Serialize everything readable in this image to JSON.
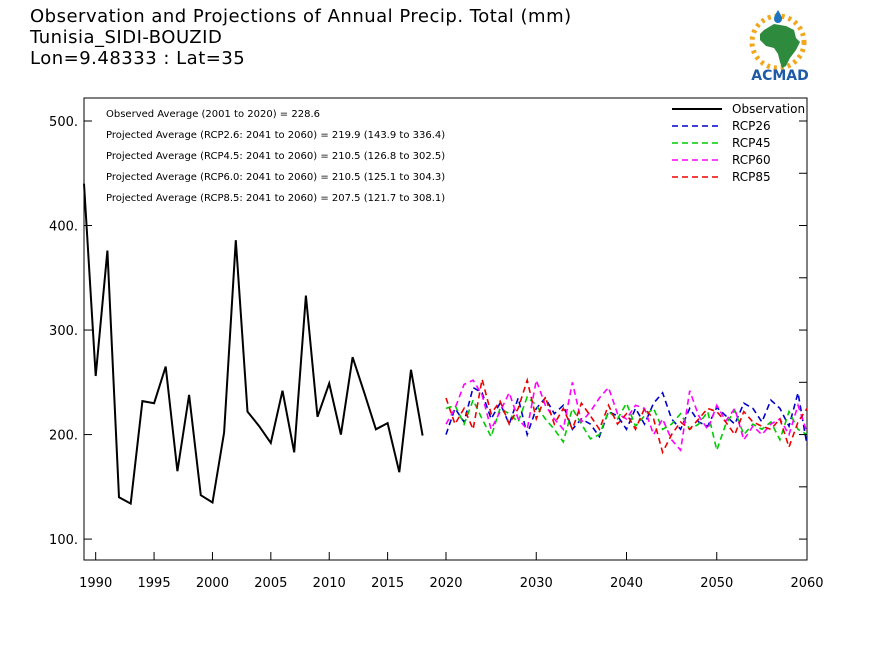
{
  "header": {
    "line1": "Observation and Projections of Annual Precip. Total (mm)",
    "line2": "Tunisia_SIDI-BOUZID",
    "line3": "Lon=9.48333 : Lat=35"
  },
  "logo": {
    "text": "ACMAD",
    "icon": "africa-map-sun-raindrop-icon"
  },
  "colors": {
    "observation": "#000000",
    "RCP26": "#0000cc",
    "RCP45": "#00cc00",
    "RCP60": "#ff00ff",
    "RCP85": "#ee0000"
  },
  "chart_data": {
    "type": "line",
    "title": "Observation and Projections of Annual Precip. Total (mm)",
    "xlim": [
      1989,
      2060
    ],
    "ylim": [
      80,
      522
    ],
    "grid": false,
    "legend_placement": "top-right",
    "stats": [
      "Observed Average (2001 to 2020) = 228.6",
      "Projected Average (RCP2.6: 2041 to 2060) = 219.9 (143.9 to 336.4)",
      "Projected Average (RCP4.5: 2041 to 2060) = 210.5 (126.8 to 302.5)",
      "Projected Average (RCP6.0: 2041 to 2060) = 210.5 (125.1 to 304.3)",
      "Projected Average (RCP8.5: 2041 to 2060) = 207.5 (121.7 to 308.1)"
    ],
    "y_ticks": [
      {
        "value": 100,
        "label": "100."
      },
      {
        "value": 200,
        "label": "200."
      },
      {
        "value": 300,
        "label": "300."
      },
      {
        "value": 400,
        "label": "400."
      },
      {
        "value": 500,
        "label": "500."
      }
    ],
    "x_ticks": [
      {
        "value": 1990,
        "label": "1990"
      },
      {
        "value": 1995,
        "label": "1995"
      },
      {
        "value": 2000,
        "label": "2000"
      },
      {
        "value": 2005,
        "label": "2005"
      },
      {
        "value": 2010,
        "label": "2010"
      },
      {
        "value": 2015,
        "label": "2015"
      },
      {
        "value": 2020,
        "label": "2020"
      },
      {
        "value": 2030,
        "label": "2030"
      },
      {
        "value": 2040,
        "label": "2040"
      },
      {
        "value": 2050,
        "label": "2050"
      },
      {
        "value": 2060,
        "label": "2060"
      }
    ],
    "series": [
      {
        "name": "Observation",
        "style": "solid",
        "color": "#000000",
        "x": [
          1989,
          1990,
          1991,
          1992,
          1993,
          1994,
          1995,
          1996,
          1997,
          1998,
          1999,
          2000,
          2001,
          2002,
          2003,
          2004,
          2005,
          2006,
          2007,
          2008,
          2009,
          2010,
          2011,
          2012,
          2013,
          2014,
          2015,
          2016,
          2017,
          2018,
          2019,
          2020
        ],
        "y": [
          440,
          256,
          376,
          140,
          134,
          232,
          230,
          265,
          165,
          238,
          142,
          135,
          202,
          386,
          222,
          208,
          192,
          242,
          183,
          333,
          217,
          249,
          200,
          274,
          240,
          205,
          211,
          164,
          262,
          199,
          null,
          null
        ]
      },
      {
        "name": "RCP26",
        "style": "dashed",
        "color": "#0000cc",
        "x": [
          2020,
          2021,
          2022,
          2023,
          2024,
          2025,
          2026,
          2027,
          2028,
          2029,
          2030,
          2031,
          2032,
          2033,
          2034,
          2035,
          2036,
          2037,
          2038,
          2039,
          2040,
          2041,
          2042,
          2043,
          2044,
          2045,
          2046,
          2047,
          2048,
          2049,
          2050,
          2051,
          2052,
          2053,
          2054,
          2055,
          2056,
          2057,
          2058,
          2059,
          2060
        ],
        "y": [
          200,
          225,
          212,
          245,
          240,
          215,
          230,
          210,
          235,
          200,
          225,
          235,
          220,
          228,
          205,
          215,
          210,
          198,
          222,
          218,
          205,
          225,
          210,
          230,
          240,
          215,
          205,
          225,
          212,
          208,
          226,
          218,
          210,
          230,
          225,
          212,
          233,
          225,
          208,
          240,
          190
        ]
      },
      {
        "name": "RCP45",
        "style": "dashed",
        "color": "#00cc00",
        "x": [
          2020,
          2021,
          2022,
          2023,
          2024,
          2025,
          2026,
          2027,
          2028,
          2029,
          2030,
          2031,
          2032,
          2033,
          2034,
          2035,
          2036,
          2037,
          2038,
          2039,
          2040,
          2041,
          2042,
          2043,
          2044,
          2045,
          2046,
          2047,
          2048,
          2049,
          2050,
          2051,
          2052,
          2053,
          2054,
          2055,
          2056,
          2057,
          2058,
          2059,
          2060
        ],
        "y": [
          225,
          228,
          210,
          233,
          215,
          198,
          225,
          220,
          212,
          236,
          228,
          215,
          205,
          193,
          225,
          210,
          196,
          200,
          222,
          215,
          230,
          208,
          218,
          225,
          205,
          210,
          220,
          205,
          210,
          222,
          185,
          210,
          223,
          200,
          210,
          205,
          212,
          195,
          222,
          205,
          200
        ]
      },
      {
        "name": "RCP60",
        "style": "dashed",
        "color": "#ff00ff",
        "x": [
          2020,
          2021,
          2022,
          2023,
          2024,
          2025,
          2026,
          2027,
          2028,
          2029,
          2030,
          2031,
          2032,
          2033,
          2034,
          2035,
          2036,
          2037,
          2038,
          2039,
          2040,
          2041,
          2042,
          2043,
          2044,
          2045,
          2046,
          2047,
          2048,
          2049,
          2050,
          2051,
          2052,
          2053,
          2054,
          2055,
          2056,
          2057,
          2058,
          2059,
          2060
        ],
        "y": [
          210,
          225,
          248,
          252,
          238,
          205,
          222,
          240,
          215,
          205,
          252,
          228,
          215,
          205,
          250,
          212,
          222,
          235,
          245,
          220,
          215,
          228,
          225,
          200,
          215,
          195,
          185,
          242,
          218,
          205,
          228,
          213,
          225,
          195,
          208,
          200,
          210,
          215,
          200,
          228,
          202
        ]
      },
      {
        "name": "RCP85",
        "style": "dashed",
        "color": "#ee0000",
        "x": [
          2020,
          2021,
          2022,
          2023,
          2024,
          2025,
          2026,
          2027,
          2028,
          2029,
          2030,
          2031,
          2032,
          2033,
          2034,
          2035,
          2036,
          2037,
          2038,
          2039,
          2040,
          2041,
          2042,
          2043,
          2044,
          2045,
          2046,
          2047,
          2048,
          2049,
          2050,
          2051,
          2052,
          2053,
          2054,
          2055,
          2056,
          2057,
          2058,
          2059,
          2060
        ],
        "y": [
          235,
          210,
          225,
          205,
          253,
          220,
          232,
          210,
          225,
          252,
          215,
          236,
          210,
          225,
          205,
          230,
          218,
          205,
          228,
          210,
          220,
          205,
          225,
          215,
          183,
          200,
          212,
          205,
          215,
          225,
          222,
          212,
          200,
          222,
          212,
          208,
          205,
          215,
          188,
          212,
          225
        ]
      }
    ]
  }
}
